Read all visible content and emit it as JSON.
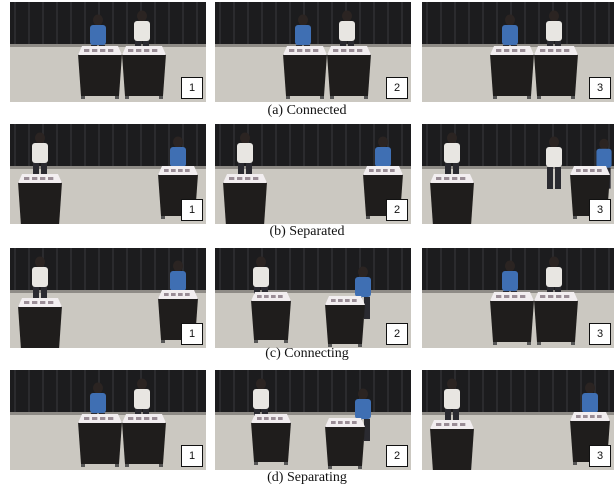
{
  "figure": {
    "rows": [
      {
        "caption": "(a) Connected",
        "panels": [
          {
            "label": "1",
            "desks": "joined",
            "people": [
              "seated-left",
              "standing-right"
            ]
          },
          {
            "label": "2",
            "desks": "joined",
            "people": [
              "seated-left",
              "standing-right"
            ]
          },
          {
            "label": "3",
            "desks": "joined",
            "people": [
              "seated-left",
              "leaning-right"
            ]
          }
        ]
      },
      {
        "caption": "(b) Separated",
        "panels": [
          {
            "label": "1",
            "desks": "apart",
            "people": [
              "standing-left",
              "standing-right"
            ]
          },
          {
            "label": "2",
            "desks": "apart",
            "people": [
              "standing-left",
              "standing-center"
            ]
          },
          {
            "label": "3",
            "desks": "apart",
            "people": [
              "walking-center",
              "standing-right"
            ]
          }
        ]
      },
      {
        "caption": "(c) Connecting",
        "panels": [
          {
            "label": "1",
            "desks": "apart",
            "people": [
              "standing-left",
              "standing-right"
            ]
          },
          {
            "label": "2",
            "desks": "moving",
            "people": [
              "standing-left",
              "pushing-right"
            ]
          },
          {
            "label": "3",
            "desks": "joined",
            "people": [
              "standing-left",
              "standing-right"
            ]
          }
        ]
      },
      {
        "caption": "(d) Separating",
        "panels": [
          {
            "label": "1",
            "desks": "joined",
            "people": [
              "standing-left",
              "standing-right"
            ]
          },
          {
            "label": "2",
            "desks": "moving",
            "people": [
              "standing-left",
              "standing-right"
            ]
          },
          {
            "label": "3",
            "desks": "apart",
            "people": [
              "standing-left",
              "standing-right"
            ]
          }
        ]
      }
    ],
    "colors": {
      "curtain": "#1c1c1e",
      "floor": "#cbc8c1",
      "desk_body": "#1f1d1c",
      "desk_top": "#f2eef0",
      "shirt_blue": "#3f6fb3",
      "shirt_white": "#e8e6e2",
      "pants": "#2a2a30"
    }
  }
}
